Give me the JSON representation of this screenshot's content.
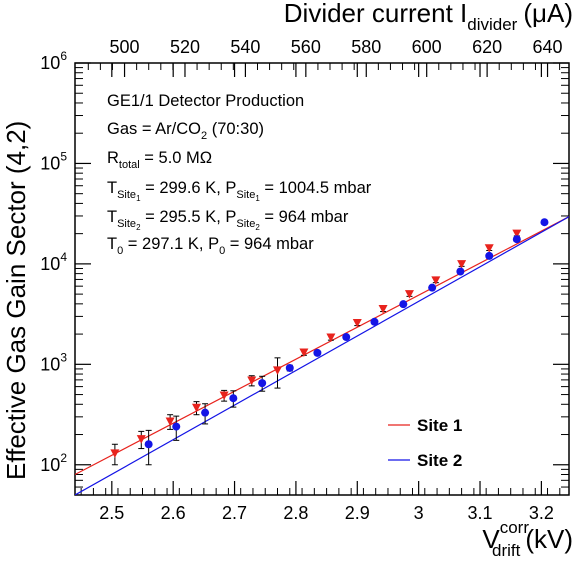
{
  "chart_data": {
    "type": "scatter",
    "title": "",
    "xlabel": {
      "main": "V",
      "sup": "corr",
      "sub": "drift",
      "unit": "(kV)"
    },
    "x2label": {
      "main": "Divider current I",
      "sub": "divider",
      "unit": "(μA)"
    },
    "ylabel": "Effective Gas Gain Sector (4,2)",
    "xlim": [
      2.44,
      3.245
    ],
    "x2lim": [
      483.6,
      647.1
    ],
    "ylim": [
      50,
      1000000
    ],
    "yscale": "log",
    "xticks": [
      2.5,
      2.6,
      2.7,
      2.8,
      2.9,
      3.0,
      3.1,
      3.2
    ],
    "xtick_labels": [
      "2.5",
      "2.6",
      "2.7",
      "2.8",
      "2.9",
      "3",
      "3.1",
      "3.2"
    ],
    "x2ticks": [
      500,
      520,
      540,
      560,
      580,
      600,
      620,
      640
    ],
    "x2tick_labels": [
      "500",
      "520",
      "540",
      "560",
      "580",
      "600",
      "620",
      "640"
    ],
    "yticks": [
      100,
      1000,
      10000,
      100000,
      1000000
    ],
    "ytick_labels": [
      {
        "base": "10",
        "exp": "2"
      },
      {
        "base": "10",
        "exp": "3"
      },
      {
        "base": "10",
        "exp": "4"
      },
      {
        "base": "10",
        "exp": "5"
      },
      {
        "base": "10",
        "exp": "6"
      }
    ],
    "annotations": [
      {
        "parts": [
          {
            "t": "GE1/1 Detector Production"
          }
        ]
      },
      {
        "parts": [
          {
            "t": "Gas = Ar/CO"
          },
          {
            "t": "2",
            "sub": true
          },
          {
            "t": " (70:30)"
          }
        ]
      },
      {
        "parts": [
          {
            "t": "R"
          },
          {
            "t": "total",
            "sub": true
          },
          {
            "t": " = 5.0 MΩ"
          }
        ]
      },
      {
        "parts": [
          {
            "t": "T"
          },
          {
            "t": "Site",
            "sub": true
          },
          {
            "t": "1",
            "sub2": true
          },
          {
            "t": " = 299.6 K, P"
          },
          {
            "t": "Site",
            "sub": true
          },
          {
            "t": "1",
            "sub2": true
          },
          {
            "t": " = 1004.5 mbar"
          }
        ]
      },
      {
        "parts": [
          {
            "t": "T"
          },
          {
            "t": "Site",
            "sub": true
          },
          {
            "t": "2",
            "sub2": true
          },
          {
            "t": " = 295.5 K, P"
          },
          {
            "t": "Site",
            "sub": true
          },
          {
            "t": "2",
            "sub2": true
          },
          {
            "t": " = 964 mbar"
          }
        ]
      },
      {
        "parts": [
          {
            "t": "T"
          },
          {
            "t": "0",
            "sub": true
          },
          {
            "t": " = 297.1 K, P"
          },
          {
            "t": "0",
            "sub": true
          },
          {
            "t": " = 964 mbar"
          }
        ]
      }
    ],
    "series": [
      {
        "name": "Site 1",
        "color": "#e8231d",
        "marker": "triangle-down",
        "fit": {
          "x": [
            2.44,
            3.245
          ],
          "y": [
            80,
            29500
          ]
        },
        "points": [
          {
            "x": 2.505,
            "y": 130,
            "err": 30
          },
          {
            "x": 2.548,
            "y": 180,
            "err": 35
          },
          {
            "x": 2.595,
            "y": 270,
            "err": 45
          },
          {
            "x": 2.638,
            "y": 370,
            "err": 55
          },
          {
            "x": 2.683,
            "y": 490,
            "err": 60
          },
          {
            "x": 2.728,
            "y": 690,
            "err": 80
          },
          {
            "x": 2.77,
            "y": 870,
            "err": 290
          },
          {
            "x": 2.813,
            "y": 1310,
            "err": 80
          },
          {
            "x": 2.857,
            "y": 1850,
            "err": 110
          },
          {
            "x": 2.9,
            "y": 2580,
            "err": 150
          },
          {
            "x": 2.942,
            "y": 3550,
            "err": 200
          },
          {
            "x": 2.985,
            "y": 5000,
            "err": 250
          },
          {
            "x": 3.028,
            "y": 6850,
            "err": 350
          },
          {
            "x": 3.07,
            "y": 9950,
            "err": 500
          },
          {
            "x": 3.115,
            "y": 14300,
            "err": 700
          },
          {
            "x": 3.16,
            "y": 20000,
            "err": 1000
          }
        ]
      },
      {
        "name": "Site 2",
        "color": "#1414e6",
        "marker": "circle",
        "fit": {
          "x": [
            2.44,
            3.245
          ],
          "y": [
            50,
            29500
          ]
        },
        "points": [
          {
            "x": 2.56,
            "y": 160,
            "err": 60
          },
          {
            "x": 2.605,
            "y": 240,
            "err": 65
          },
          {
            "x": 2.652,
            "y": 330,
            "err": 75
          },
          {
            "x": 2.698,
            "y": 460,
            "err": 85
          },
          {
            "x": 2.745,
            "y": 650,
            "err": 110
          },
          {
            "x": 2.79,
            "y": 920,
            "err": 60
          },
          {
            "x": 2.835,
            "y": 1300,
            "err": 60
          },
          {
            "x": 2.882,
            "y": 1870,
            "err": 90
          },
          {
            "x": 2.928,
            "y": 2650,
            "err": 130
          },
          {
            "x": 2.975,
            "y": 3970,
            "err": 190
          },
          {
            "x": 3.022,
            "y": 5800,
            "err": 280
          },
          {
            "x": 3.068,
            "y": 8400,
            "err": 400
          },
          {
            "x": 3.115,
            "y": 12000,
            "err": 600
          },
          {
            "x": 3.16,
            "y": 17600,
            "err": 850
          },
          {
            "x": 3.205,
            "y": 26000,
            "err": 1200
          }
        ]
      }
    ],
    "legend": {
      "placement": "bottom-right",
      "entries": [
        "Site 1",
        "Site 2"
      ]
    }
  }
}
